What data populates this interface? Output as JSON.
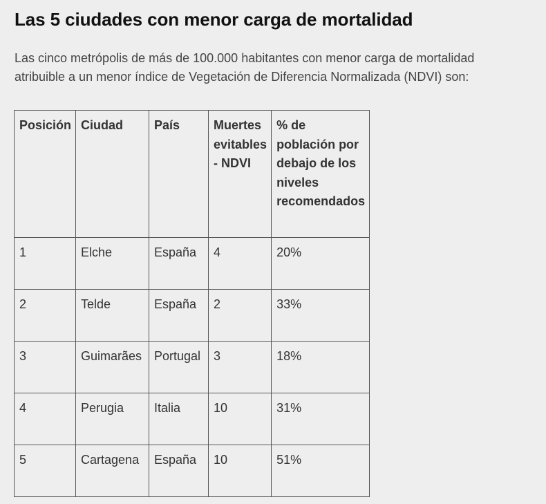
{
  "heading": "Las 5 ciudades con menor carga de mortalidad",
  "intro": "Las cinco metrópolis de más de 100.000 habitantes con menor carga de mortalidad atribuible a un menor índice de Vegetación de Diferencia Normalizada (NDVI) son:",
  "table": {
    "headers": [
      "Posición",
      "Ciudad",
      "País",
      "Muertes evitables - NDVI",
      "% de población por debajo de los niveles recomendados"
    ],
    "rows": [
      [
        "1",
        "Elche",
        "España",
        "4",
        "20%"
      ],
      [
        "2",
        "Telde",
        "España",
        "2",
        "33%"
      ],
      [
        "3",
        "Guimarães",
        "Portugal",
        "3",
        "18%"
      ],
      [
        "4",
        "Perugia",
        "Italia",
        "10",
        "31%"
      ],
      [
        "5",
        "Cartagena",
        "España",
        "10",
        "51%"
      ]
    ]
  }
}
